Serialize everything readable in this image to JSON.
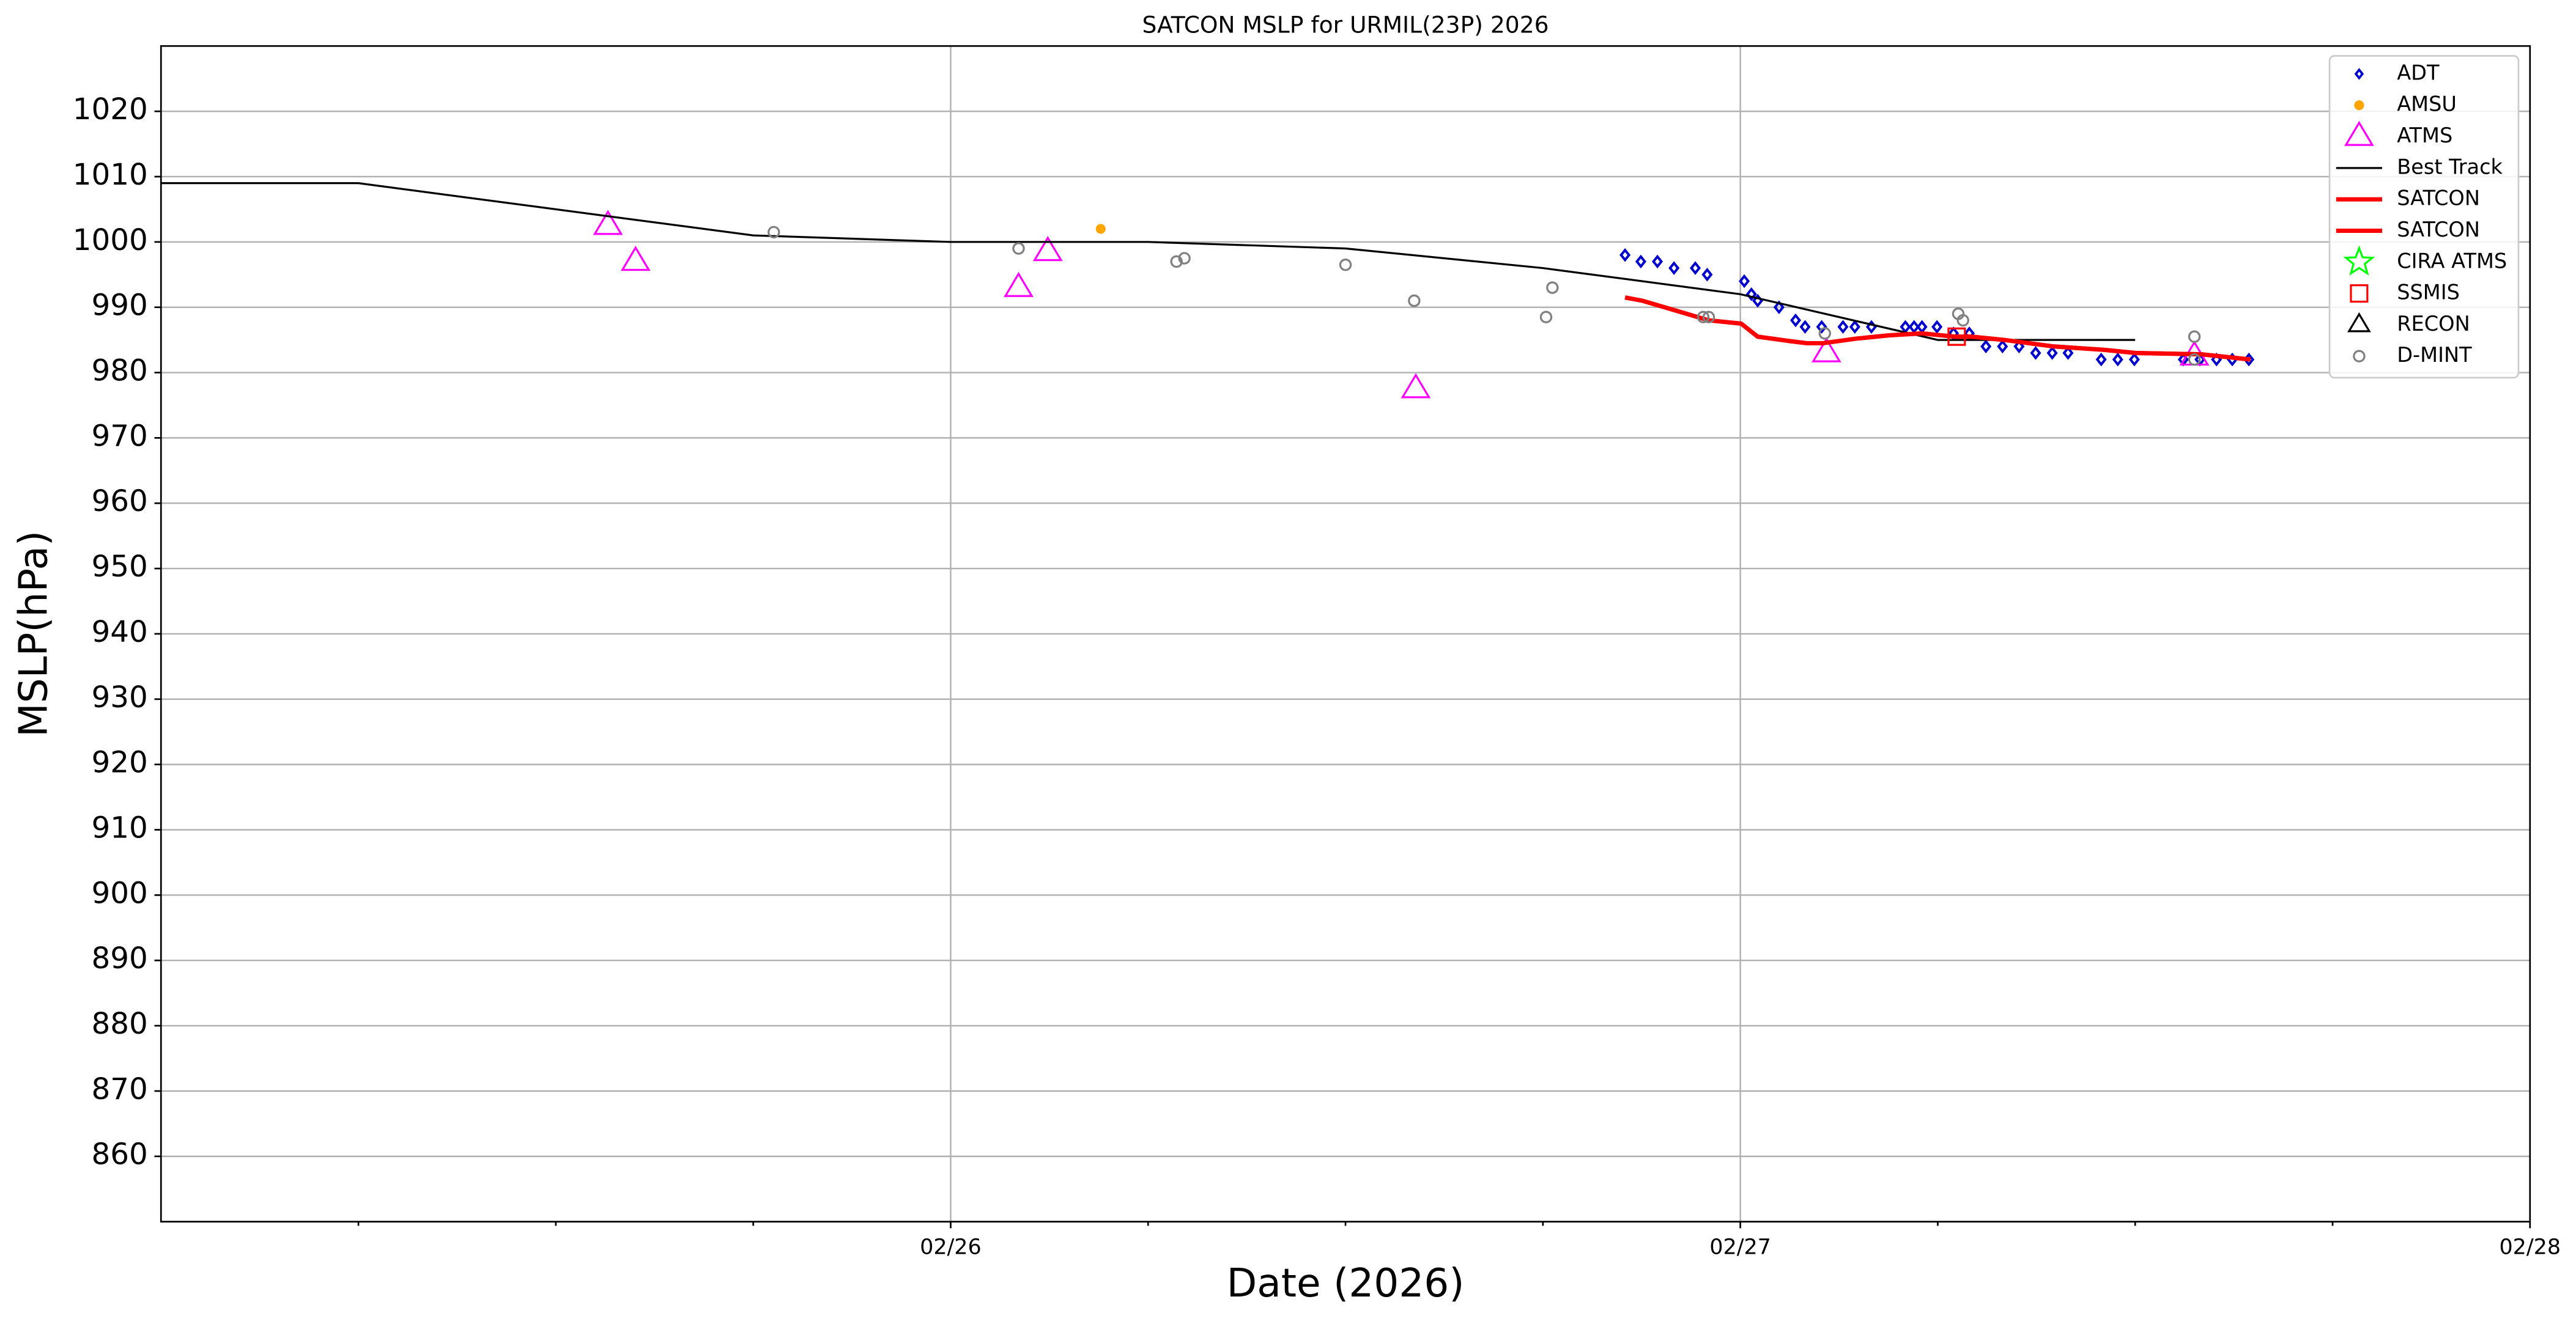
{
  "chart_data": {
    "type": "line",
    "title": "SATCON MSLP for URMIL(23P) 2026",
    "xlabel": "Date (2026)",
    "ylabel": "MSLP(hPa)",
    "xlim": [
      0,
      3
    ],
    "xticks": [
      {
        "value": 1,
        "label": "02/26"
      },
      {
        "value": 2,
        "label": "02/27"
      },
      {
        "value": 3,
        "label": "02/28"
      }
    ],
    "xminorticks": [
      0.25,
      0.5,
      0.75,
      1.25,
      1.5,
      1.75,
      2.25,
      2.5,
      2.75
    ],
    "ylim": [
      850,
      1030
    ],
    "yticks": [
      860,
      870,
      880,
      890,
      900,
      910,
      920,
      930,
      940,
      950,
      960,
      970,
      980,
      990,
      1000,
      1010,
      1020
    ],
    "grid": true,
    "legend": "upper right",
    "series": [
      {
        "name": "ADT",
        "color": "#0000cc",
        "style": "diamond",
        "x": [
          1.854,
          1.874,
          1.895,
          1.916,
          1.943,
          1.958,
          2.005,
          2.014,
          2.022,
          2.049,
          2.07,
          2.082,
          2.103,
          2.13,
          2.145,
          2.166,
          2.209,
          2.22,
          2.23,
          2.249,
          2.27,
          2.29,
          2.311,
          2.332,
          2.353,
          2.374,
          2.395,
          2.415,
          2.457,
          2.478,
          2.499,
          2.561,
          2.582,
          2.603,
          2.623,
          2.644
        ],
        "values": [
          998,
          997,
          997,
          996,
          996,
          995,
          994,
          992,
          991,
          990,
          988,
          987,
          987,
          987,
          987,
          987,
          987,
          987,
          987,
          987,
          986,
          986,
          984,
          984,
          984,
          983,
          983,
          983,
          982,
          982,
          982,
          982,
          982,
          982,
          982,
          982
        ]
      },
      {
        "name": "AMSU",
        "color": "#ffa500",
        "style": "dot",
        "x": [
          1.19
        ],
        "values": [
          1002
        ]
      },
      {
        "name": "ATMS",
        "color": "#ff00ff",
        "style": "triangle",
        "x": [
          0.566,
          0.601,
          1.086,
          1.123,
          1.589,
          2.109,
          2.575
        ],
        "values": [
          1002.5,
          997,
          993,
          998.5,
          977.5,
          983,
          982.5
        ]
      },
      {
        "name": "Best Track",
        "color": "#000000",
        "style": "line",
        "width": 1.2,
        "x": [
          0,
          0.25,
          0.75,
          1,
          1.25,
          1.5,
          1.75,
          2,
          2.25,
          2.5
        ],
        "values": [
          1009,
          1009,
          1001,
          1000,
          1000,
          999,
          996,
          992,
          985,
          985
        ]
      },
      {
        "name": "SATCON",
        "color": "#ff0000",
        "style": "line",
        "width": 2.6,
        "x": [
          1.854,
          1.876,
          1.918,
          1.96,
          2.001,
          2.022,
          2.064,
          2.084,
          2.105,
          2.147,
          2.188,
          2.23,
          2.272,
          2.293,
          2.334,
          2.397,
          2.459,
          2.501,
          2.584,
          2.646
        ],
        "values": [
          991.5,
          991,
          989.5,
          988,
          987.5,
          985.5,
          984.8,
          984.5,
          984.5,
          985.2,
          985.7,
          986,
          985.5,
          985.5,
          985,
          984,
          983.5,
          983,
          982.8,
          982
        ]
      },
      {
        "name": "SATCON",
        "color": "#ff0000",
        "style": "line",
        "width": 2.6,
        "x": [
          1.854,
          1.876,
          1.918,
          1.96,
          2.001,
          2.022,
          2.064,
          2.084,
          2.105,
          2.147,
          2.188,
          2.23,
          2.272,
          2.293,
          2.334,
          2.397,
          2.459,
          2.501,
          2.584,
          2.646
        ],
        "values": [
          991.5,
          991,
          989.5,
          988,
          987.5,
          985.5,
          984.8,
          984.5,
          984.5,
          985.2,
          985.7,
          986,
          985.5,
          985.5,
          985,
          984,
          983.5,
          983,
          982.8,
          982
        ]
      },
      {
        "name": "CIRA ATMS",
        "color": "#00ff00",
        "style": "star",
        "x": [],
        "values": []
      },
      {
        "name": "SSMIS",
        "color": "#ff0000",
        "style": "square",
        "x": [
          2.274
        ],
        "values": [
          985.5
        ]
      },
      {
        "name": "RECON",
        "color": "#000000",
        "style": "triangle",
        "x": [],
        "values": []
      },
      {
        "name": "D-MINT",
        "color": "#808080",
        "style": "circle",
        "x": [
          0.776,
          1.086,
          1.286,
          1.296,
          1.5,
          1.587,
          1.754,
          1.762,
          1.953,
          1.96,
          2.107,
          2.276,
          2.282,
          2.575,
          2.575
        ],
        "values": [
          1001.5,
          999,
          997,
          997.5,
          996.5,
          991,
          988.5,
          993,
          988.5,
          988.5,
          986,
          989,
          988,
          985.5,
          982
        ]
      }
    ]
  }
}
